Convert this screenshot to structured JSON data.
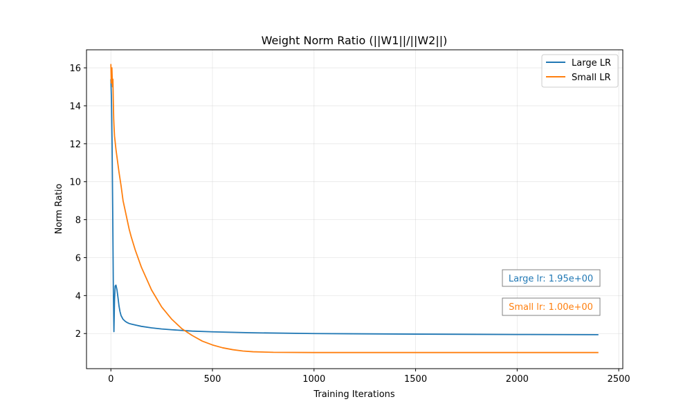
{
  "chart_data": {
    "type": "line",
    "title": "Weight Norm Ratio (||W1||/||W2||)",
    "xlabel": "Training Iterations",
    "ylabel": "Norm Ratio",
    "xlim": [
      -120,
      2520
    ],
    "ylim": [
      0.15,
      16.95
    ],
    "xticks": [
      0,
      500,
      1000,
      1500,
      2000,
      2500
    ],
    "yticks": [
      2,
      4,
      6,
      8,
      10,
      12,
      14,
      16
    ],
    "grid": true,
    "legend_position": "top-right",
    "series": [
      {
        "name": "Large LR",
        "color": "#1f77b4",
        "x": [
          0,
          3,
          6,
          9,
          12,
          15,
          18,
          21,
          25,
          30,
          35,
          40,
          45,
          50,
          60,
          70,
          80,
          90,
          100,
          120,
          150,
          200,
          250,
          300,
          400,
          500,
          700,
          1000,
          1500,
          2000,
          2400
        ],
        "y": [
          15.4,
          14.3,
          12.0,
          8.5,
          4.5,
          2.1,
          3.8,
          4.5,
          4.55,
          4.3,
          3.9,
          3.45,
          3.15,
          2.95,
          2.75,
          2.65,
          2.58,
          2.53,
          2.5,
          2.45,
          2.38,
          2.3,
          2.24,
          2.2,
          2.13,
          2.09,
          2.04,
          2.0,
          1.97,
          1.95,
          1.94
        ]
      },
      {
        "name": "Small LR",
        "color": "#ff7f0e",
        "x": [
          0,
          2,
          5,
          8,
          10,
          12,
          14,
          16,
          18,
          20,
          25,
          30,
          40,
          50,
          60,
          70,
          80,
          90,
          100,
          120,
          150,
          200,
          250,
          300,
          350,
          400,
          450,
          500,
          550,
          600,
          650,
          700,
          800,
          1000,
          1500,
          2000,
          2400
        ],
        "y": [
          16.2,
          15.2,
          16.0,
          15.0,
          15.4,
          14.2,
          13.3,
          12.8,
          12.4,
          12.2,
          11.7,
          11.3,
          10.5,
          9.8,
          9.0,
          8.5,
          8.0,
          7.5,
          7.1,
          6.4,
          5.5,
          4.3,
          3.4,
          2.75,
          2.25,
          1.9,
          1.6,
          1.4,
          1.25,
          1.15,
          1.08,
          1.04,
          1.01,
          1.0,
          1.0,
          1.0,
          1.0
        ]
      }
    ],
    "annotations": [
      {
        "text": "Large lr: 1.95e+00",
        "color": "#1f77b4"
      },
      {
        "text": "Small lr: 1.00e+00",
        "color": "#ff7f0e"
      }
    ]
  }
}
